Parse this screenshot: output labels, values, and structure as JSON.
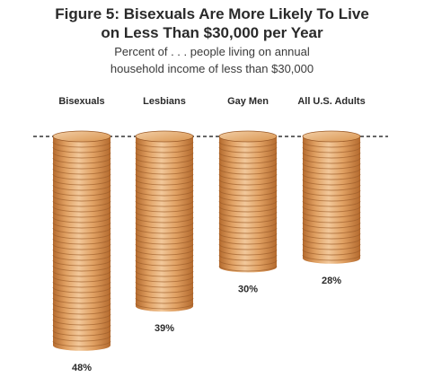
{
  "chart_data": {
    "type": "bar",
    "title_lines": [
      "Figure 5: Bisexuals Are More Likely To Live",
      "on Less Than $30,000 per Year"
    ],
    "subtitle_lines": [
      "Percent of . . . people living on annual",
      "household income of less than $30,000"
    ],
    "categories": [
      "Bisexuals",
      "Lesbians",
      "Gay Men",
      "All U.S. Adults"
    ],
    "values": [
      48,
      39,
      30,
      28
    ],
    "value_labels": [
      "48%",
      "39%",
      "30%",
      "28%"
    ],
    "ylim": [
      0,
      50
    ],
    "reference_line": "dashed",
    "colors": {
      "coin_base": "#e0a062",
      "coin_light": "#f2c89a",
      "coin_dark": "#b46a2e",
      "coin_edge": "#9a5a28",
      "text": "#2a2a2a"
    }
  }
}
